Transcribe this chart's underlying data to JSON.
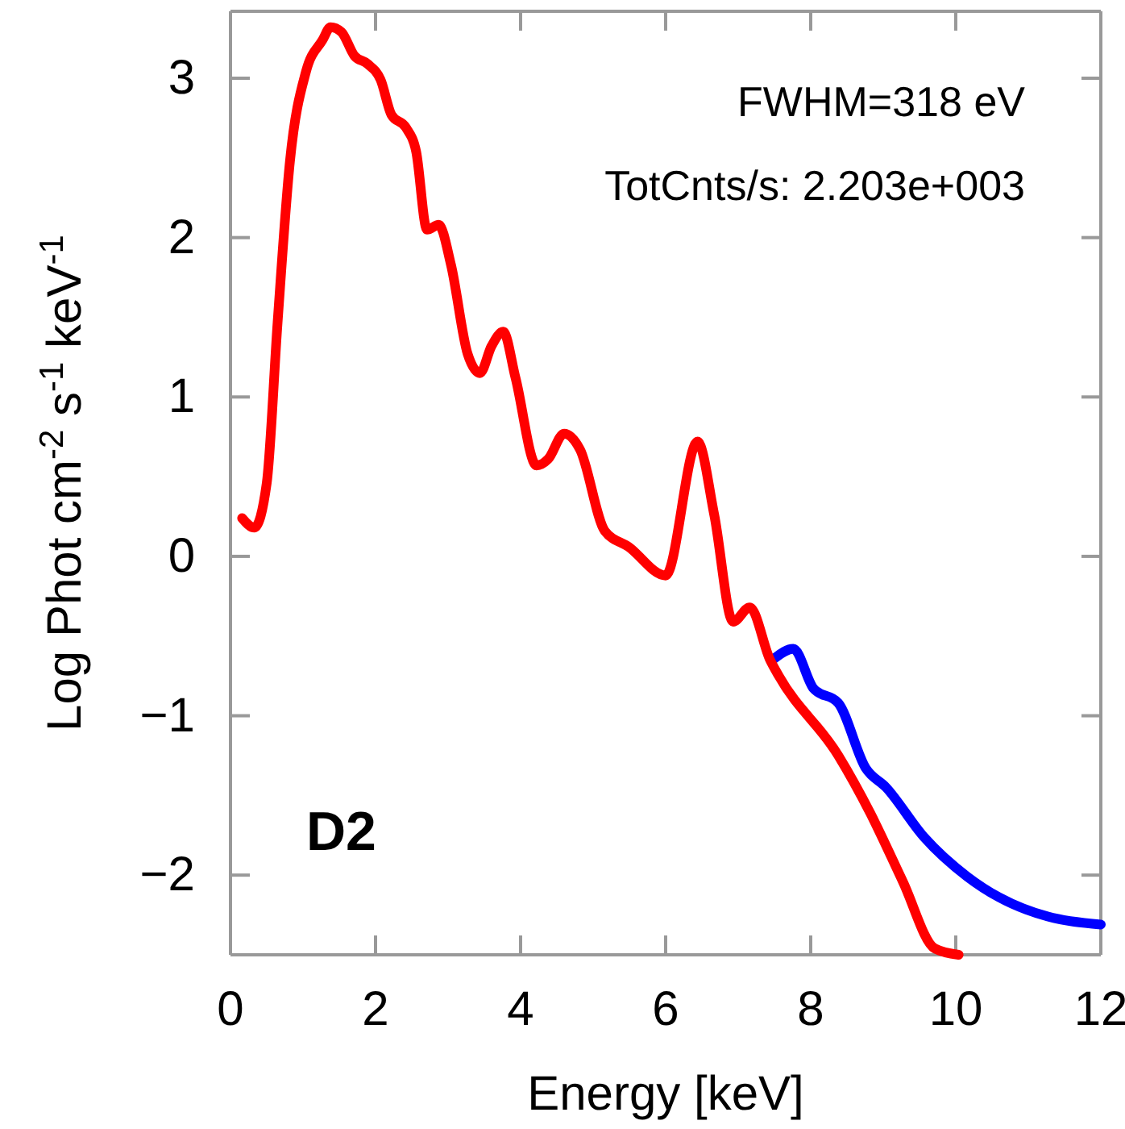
{
  "chart_data": {
    "type": "line",
    "xlabel": "Energy [keV]",
    "ylabel": "Log Phot cm$^{-2}$ s$^{-1}$ keV$^{-1}$",
    "xlim": [
      0,
      12
    ],
    "ylim": [
      -2.5,
      3.42
    ],
    "xticks": [
      0,
      2,
      4,
      6,
      8,
      10,
      12
    ],
    "yticks": [
      -2,
      -1,
      0,
      1,
      2,
      3
    ],
    "grid": false,
    "marker": "none",
    "line_style": "solid",
    "annotations": [
      "FWHM=318 eV",
      "TotCnts/s: 2.203e+003",
      "D2"
    ],
    "series": [
      {
        "color": "#0000ff",
        "x": [
          7.5,
          7.76,
          8.04,
          8.38,
          8.76,
          9.04,
          9.56,
          10.16,
          10.6,
          11.27,
          12
        ],
        "values": [
          -0.64,
          -0.58,
          -0.83,
          -0.92,
          -1.33,
          -1.45,
          -1.76,
          -2.01,
          -2.14,
          -2.26,
          -2.31
        ]
      },
      {
        "color": "#ff0000",
        "x": [
          0.16,
          0.33,
          0.5,
          0.65,
          0.82,
          1.04,
          1.27,
          1.38,
          1.53,
          1.71,
          1.89,
          2.07,
          2.22,
          2.42,
          2.56,
          2.71,
          2.87,
          3.04,
          3.27,
          3.44,
          3.6,
          3.76,
          3.93,
          4.22,
          4.38,
          4.6,
          4.82,
          5.16,
          5.49,
          6.0,
          6.44,
          6.67,
          6.93,
          7.16,
          7.44,
          7.56,
          8.38,
          8.82,
          9.27,
          9.71,
          10.04
        ],
        "values": [
          0.24,
          0.18,
          0.46,
          1.47,
          2.48,
          3.04,
          3.24,
          3.32,
          3.29,
          3.14,
          3.09,
          2.99,
          2.77,
          2.69,
          2.54,
          2.05,
          2.08,
          1.83,
          1.27,
          1.15,
          1.32,
          1.41,
          1.12,
          0.57,
          0.61,
          0.77,
          0.67,
          0.16,
          0.06,
          -0.12,
          0.72,
          0.26,
          -0.41,
          -0.32,
          -0.65,
          -0.75,
          -1.25,
          -1.61,
          -2.04,
          -2.46,
          -2.5
        ]
      }
    ]
  }
}
